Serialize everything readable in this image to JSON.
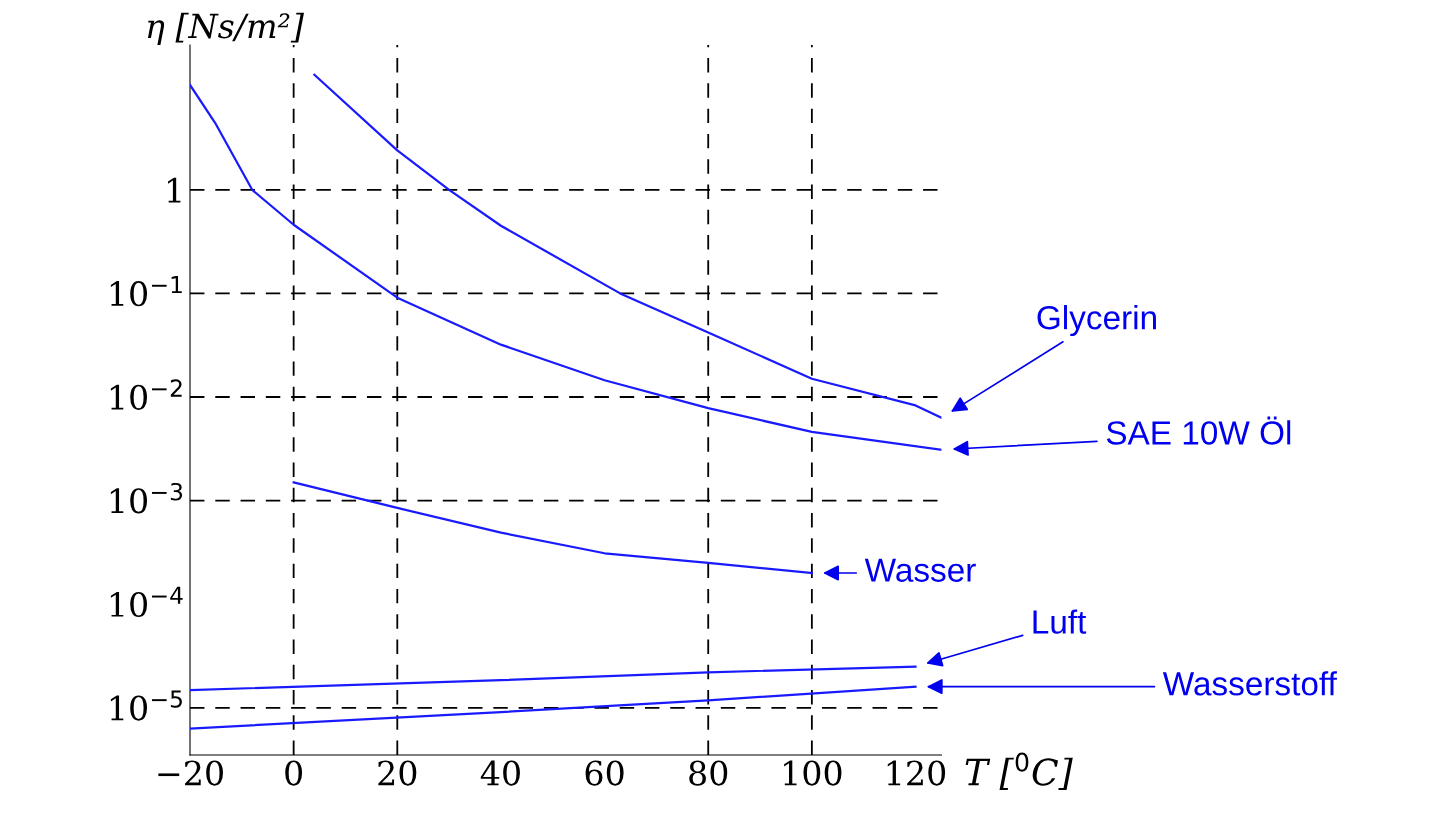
{
  "chart_data": {
    "type": "line",
    "xlabel": "T [$^{0}$C]",
    "ylabel": "η [Ns/m²]",
    "log": "y",
    "grid": false,
    "legend": false,
    "marker": "none",
    "line_style": "solid",
    "xlim": [
      -20,
      125
    ],
    "ylim": [
      3.5e-06,
      25
    ],
    "xticks": [
      {
        "value": -20,
        "label": "−20"
      },
      0,
      20,
      40,
      60,
      80,
      100,
      120
    ],
    "yticks": [
      {
        "value": 1,
        "label": "1"
      },
      {
        "value": 0.1,
        "label": "10$^{−1}$"
      },
      {
        "value": 0.01,
        "label": "10$^{−2}$"
      },
      {
        "value": 0.001,
        "label": "10$^{−3}$"
      },
      {
        "value": 0.0001,
        "label": "10$^{−4}$"
      },
      {
        "value": 1e-05,
        "label": "10$^{−5}$"
      }
    ],
    "series": [
      {
        "name": "Glycerin",
        "color": "#1a1aff",
        "x": [
          4,
          20,
          30,
          40,
          63,
          80,
          100,
          120,
          125
        ],
        "values": [
          12.9,
          2.4,
          1.0,
          0.45,
          0.1,
          0.042,
          0.015,
          0.0083,
          0.0063
        ]
      },
      {
        "name": "SAE 10W Öl",
        "color": "#1a1aff",
        "x": [
          -20,
          -15,
          -8,
          0,
          20,
          40,
          60,
          80,
          100,
          125
        ],
        "values": [
          10.3,
          4.3,
          1.0,
          0.46,
          0.091,
          0.032,
          0.0145,
          0.0078,
          0.0046,
          0.0031
        ]
      },
      {
        "name": "Wasser",
        "color": "#1a1aff",
        "x": [
          0,
          20,
          40,
          60,
          80,
          100
        ],
        "values": [
          0.0015,
          0.00085,
          0.00049,
          0.00031,
          0.00025,
          0.0002
        ]
      },
      {
        "name": "Luft",
        "color": "#1a1aff",
        "x": [
          -20,
          40,
          80,
          120
        ],
        "values": [
          1.48e-05,
          1.85e-05,
          2.2e-05,
          2.5e-05
        ]
      },
      {
        "name": "Wasserstoff",
        "color": "#1a1aff",
        "x": [
          -20,
          40,
          80,
          120
        ],
        "values": [
          6.3e-06,
          9.1e-06,
          1.18e-05,
          1.6e-05
        ]
      }
    ],
    "ref_lines": [
      {
        "axis": "x",
        "value": 0,
        "color": "#000000",
        "line_style": "dashed"
      },
      {
        "axis": "x",
        "value": 20,
        "color": "#000000",
        "line_style": "dashed"
      },
      {
        "axis": "x",
        "value": 80,
        "color": "#000000",
        "line_style": "dashed"
      },
      {
        "axis": "x",
        "value": 100,
        "color": "#000000",
        "line_style": "dashed"
      },
      {
        "axis": "y",
        "value": 1,
        "color": "#000000",
        "line_style": "dashed"
      },
      {
        "axis": "y",
        "value": 0.1,
        "color": "#000000",
        "line_style": "dashed"
      },
      {
        "axis": "y",
        "value": 0.01,
        "color": "#000000",
        "line_style": "dashed"
      },
      {
        "axis": "y",
        "value": 0.001,
        "color": "#000000",
        "line_style": "dashed"
      },
      {
        "axis": "y",
        "value": 1e-05,
        "color": "#000000",
        "line_style": "dashed"
      }
    ]
  }
}
